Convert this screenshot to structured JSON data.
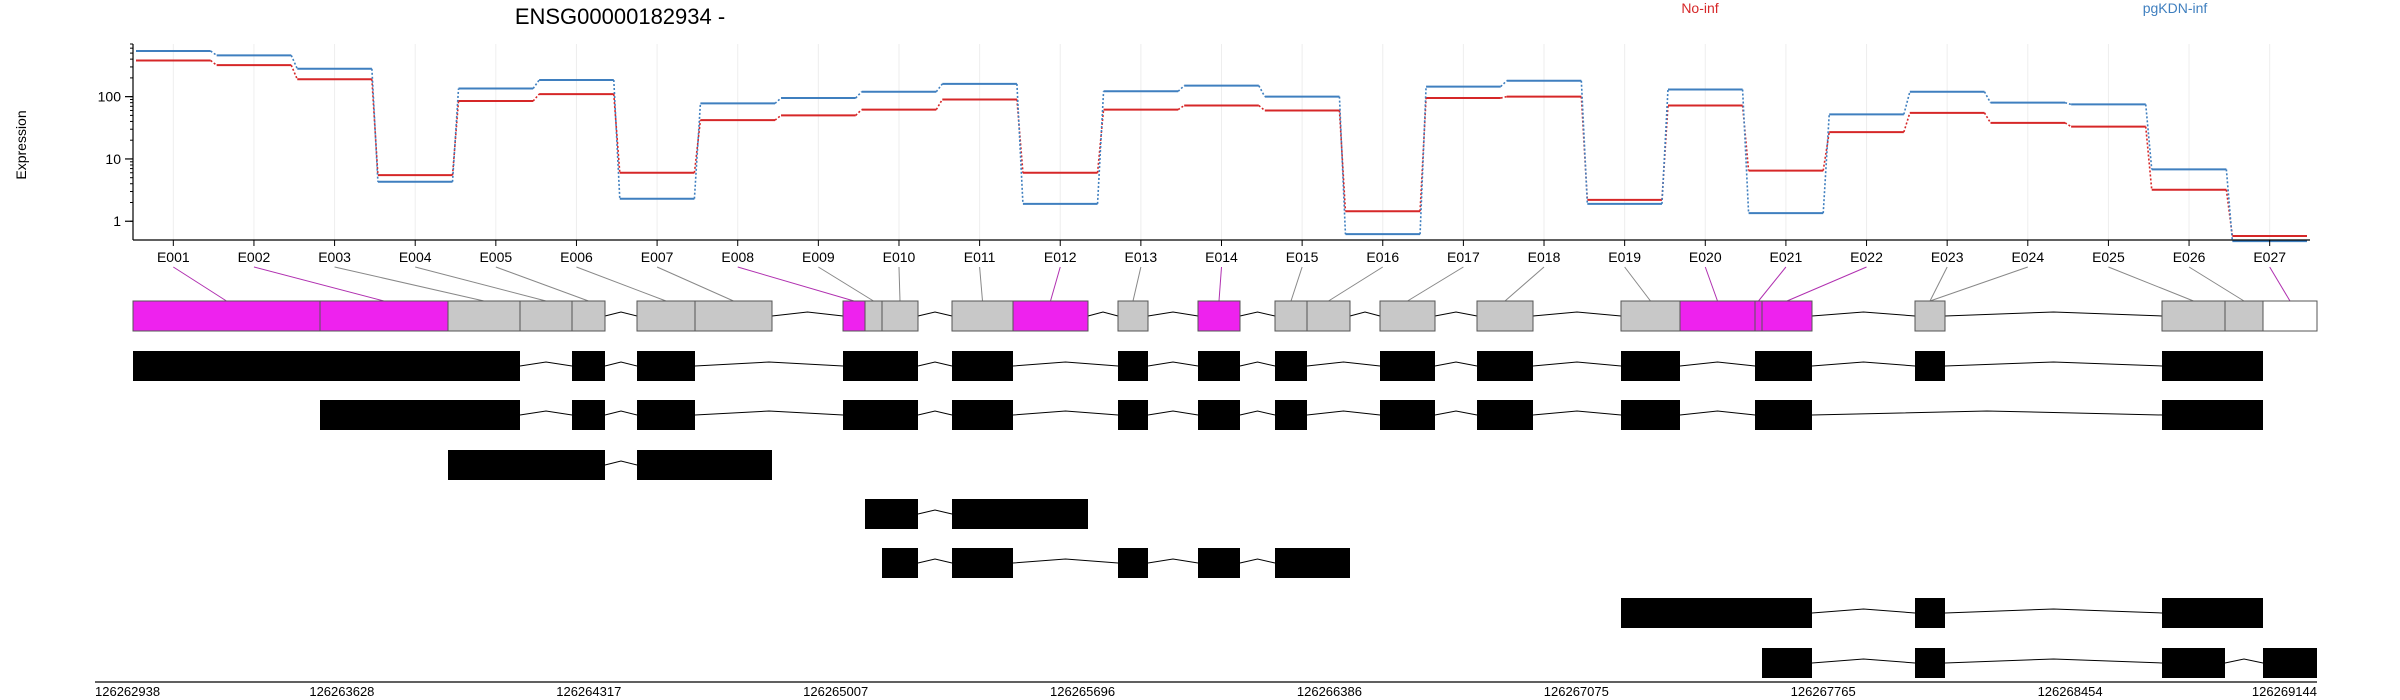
{
  "title": "ENSG00000182934 -",
  "colors": {
    "noinf": "#d62728",
    "kd": "#3f7fbf",
    "highlight": "#ee22ee",
    "exon_default": "#c8c8c8",
    "transcript": "#000000",
    "grid": "#eeeeee"
  },
  "chart_data": {
    "type": "line",
    "title": "ENSG00000182934 -",
    "ylabel": "Expression",
    "y_scale": "log",
    "ylim": [
      0.5,
      700
    ],
    "yticks": [
      {
        "value": 1,
        "label": "1"
      },
      {
        "value": 10,
        "label": "10"
      },
      {
        "value": 100,
        "label": "100"
      }
    ],
    "categories": [
      "E001",
      "E002",
      "E003",
      "E004",
      "E005",
      "E006",
      "E007",
      "E008",
      "E009",
      "E010",
      "E011",
      "E012",
      "E013",
      "E014",
      "E015",
      "E016",
      "E017",
      "E018",
      "E019",
      "E020",
      "E021",
      "E022",
      "E023",
      "E024",
      "E025",
      "E026",
      "E027"
    ],
    "legend_position": "top-right",
    "series": [
      {
        "name": "No-inf",
        "color": "#d62728",
        "values": [
          380,
          320,
          190,
          5.5,
          85,
          110,
          6,
          42,
          50,
          62,
          90,
          6,
          62,
          72,
          60,
          1.45,
          95,
          100,
          2.2,
          72,
          6.5,
          27,
          55,
          38,
          33,
          3.2,
          0.58
        ]
      },
      {
        "name": "pgKDN-inf",
        "color": "#3f7fbf",
        "values": [
          540,
          460,
          280,
          4.3,
          135,
          185,
          2.3,
          78,
          95,
          120,
          160,
          1.9,
          122,
          150,
          100,
          0.62,
          145,
          180,
          1.9,
          130,
          1.35,
          52,
          120,
          80,
          75,
          6.8,
          0.48
        ]
      }
    ],
    "genomic_ticks": [
      "126262938",
      "126263628",
      "126264317",
      "126265007",
      "126265696",
      "126266386",
      "126267075",
      "126267765",
      "126268454",
      "126269144"
    ]
  },
  "gene_model": {
    "exon_highlight": [
      true,
      true,
      false,
      false,
      false,
      false,
      false,
      true,
      false,
      false,
      false,
      true,
      false,
      true,
      false,
      false,
      false,
      false,
      false,
      true,
      true,
      true,
      false,
      false,
      false,
      true,
      false,
      false
    ],
    "exon_white_last": true
  },
  "transcripts": [
    [
      [
        1,
        6
      ]
    ],
    [
      [
        2,
        6
      ]
    ],
    [
      [
        3,
        8
      ]
    ],
    [
      [
        9,
        12
      ]
    ],
    [
      [
        10,
        15
      ]
    ],
    [
      [
        19,
        23
      ]
    ],
    [
      [
        21,
        27
      ]
    ]
  ]
}
